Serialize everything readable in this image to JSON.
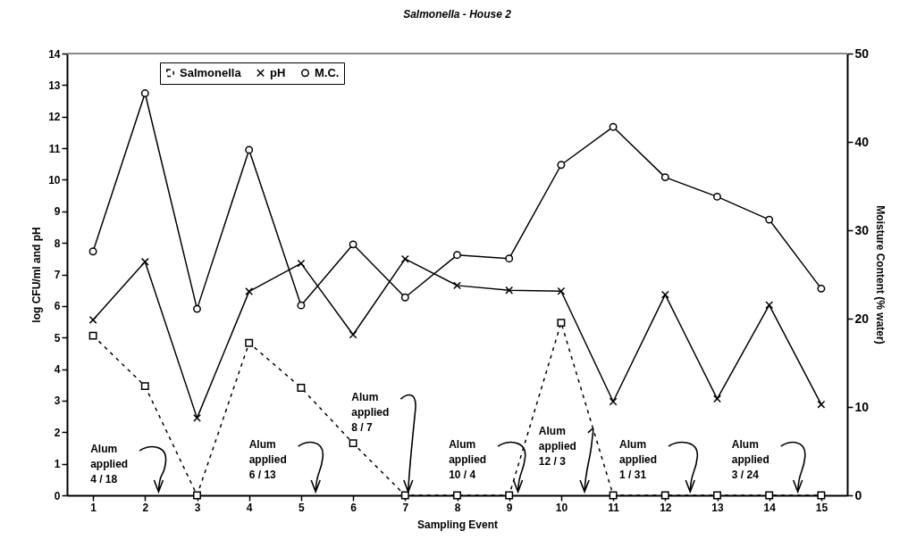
{
  "chart_data": {
    "type": "line",
    "title": "Salmonella - House 2",
    "xlabel": "Sampling Event",
    "ylabel": "log CFU/ml and pH",
    "y2label": "Moisture Content (% water)",
    "x": [
      1,
      2,
      3,
      4,
      5,
      6,
      7,
      8,
      9,
      10,
      11,
      12,
      13,
      14,
      15
    ],
    "xlim": [
      0.5,
      15.5
    ],
    "xticks": [
      1,
      2,
      3,
      4,
      5,
      6,
      7,
      8,
      9,
      10,
      11,
      12,
      13,
      14,
      15
    ],
    "ylim": [
      0,
      14
    ],
    "yticks": [
      0,
      1,
      2,
      3,
      4,
      5,
      6,
      7,
      8,
      9,
      10,
      11,
      12,
      13,
      14
    ],
    "y2lim": [
      0,
      50
    ],
    "y2ticks": [
      0,
      10,
      20,
      30,
      40,
      50
    ],
    "grid": false,
    "legend": "top left",
    "series": [
      {
        "name": "Salmonella",
        "color": "#000000",
        "marker": "square",
        "line_style": "dashed",
        "values": [
          5.06,
          3.46,
          0,
          4.83,
          3.41,
          1.65,
          0,
          0,
          0,
          5.47,
          0,
          0,
          0,
          0,
          0
        ]
      },
      {
        "name": "pH",
        "color": "#000000",
        "marker": "cross",
        "line_style": "solid",
        "values": [
          5.56,
          7.4,
          2.45,
          6.46,
          7.35,
          5.09,
          7.49,
          6.65,
          6.5,
          6.47,
          2.97,
          6.36,
          3.06,
          6.03,
          2.88
        ]
      },
      {
        "name": "M.C.",
        "color": "#000000",
        "marker": "circle",
        "line_style": "solid",
        "axis": "y2",
        "values": [
          27.6,
          45.5,
          21.1,
          39.1,
          21.5,
          28.4,
          22.4,
          27.2,
          26.8,
          37.4,
          41.7,
          36.0,
          33.8,
          31.2,
          23.4
        ]
      }
    ],
    "annotations": [
      "Alum\napplied\n4 / 18",
      "Alum\napplied\n6 / 13",
      {
        "text": "Alum\napplied\n8 / 7",
        "x": 7.06,
        "y": 0
      },
      "Alum\napplied\n10 / 4",
      "Alum\napplied\n12 / 3",
      {
        "text": "Alum\napplied\n1 / 31",
        "x": 12.48,
        "y": 0
      },
      {
        "text": "Alum\napplied\n3 / 24",
        "x": 14.55,
        "y": 0
      }
    ]
  }
}
